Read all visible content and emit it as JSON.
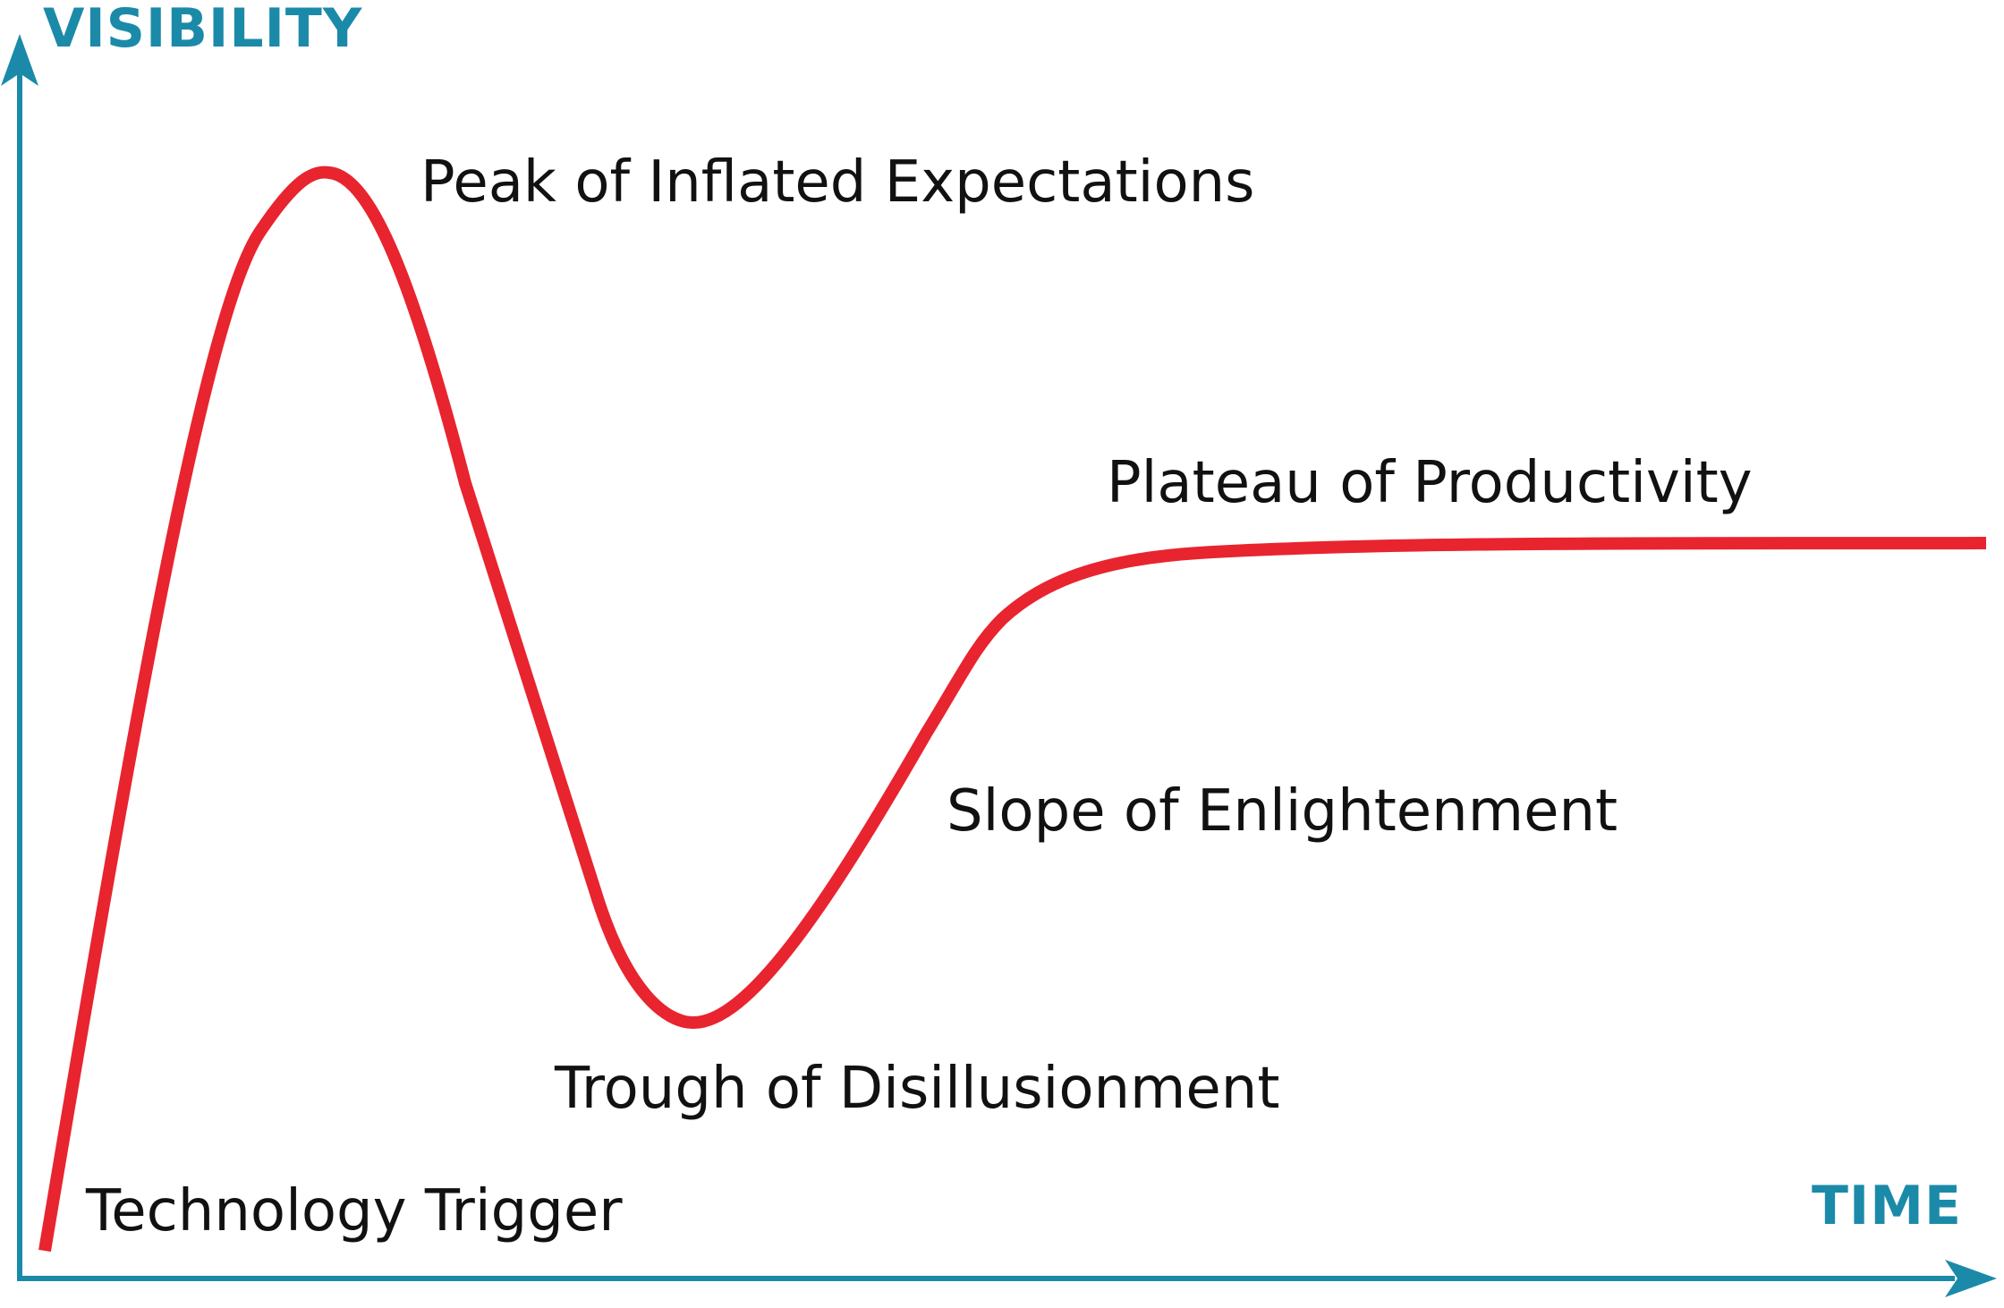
{
  "axes": {
    "y_label": "VISIBILITY",
    "x_label": "TIME",
    "color": "#1b8aa9"
  },
  "curve": {
    "color": "#e8242f"
  },
  "phases": {
    "technology_trigger": "Technology Trigger",
    "peak": "Peak of Inflated Expectations",
    "trough": "Trough of Disillusionment",
    "slope": "Slope of Enlightenment",
    "plateau": "Plateau of Productivity"
  }
}
